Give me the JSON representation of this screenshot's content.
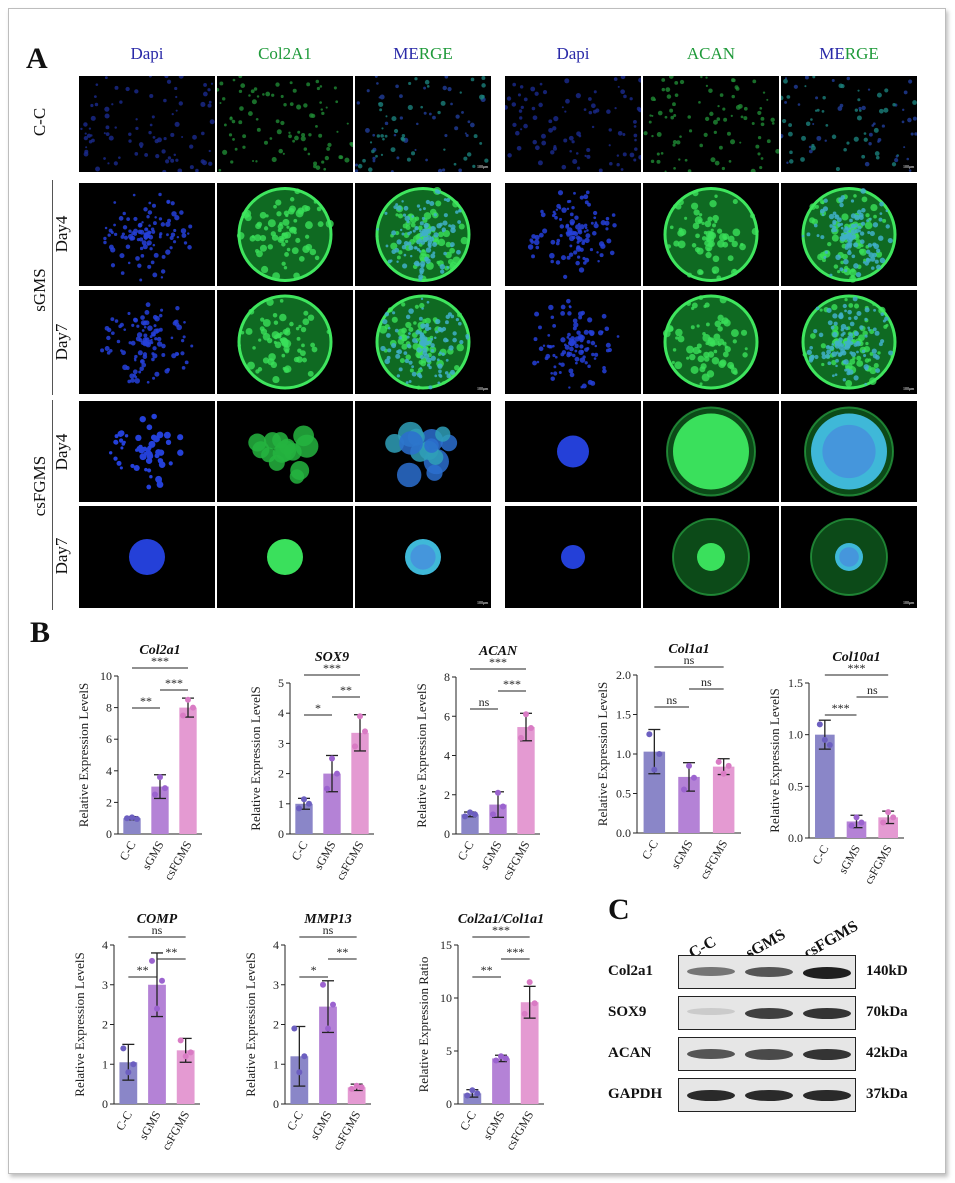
{
  "panels": {
    "a": "A",
    "b": "B",
    "c": "C"
  },
  "microscopy": {
    "col_headers_left": [
      "Dapi",
      "Col2A1",
      "MERGE"
    ],
    "col_headers_right": [
      "Dapi",
      "ACAN",
      "MERGE"
    ],
    "header_colors": {
      "Dapi": "#2a2aa8",
      "Col2A1": "#1f9a3a",
      "ACAN": "#1f9a3a",
      "ME": "#2a2aa8",
      "RGE": "#1f9a3a"
    },
    "group_labels": {
      "cc": "C-C",
      "sgms": "sGMS",
      "csfgms": "csFGMS"
    },
    "day_labels": [
      "Day4",
      "Day7",
      "Day4",
      "Day7"
    ],
    "scale_bar_text": "100μm"
  },
  "chart_data": [
    {
      "type": "bar",
      "title": "Col2a1",
      "ylabel": "Relative Expression LevelS",
      "categories": [
        "C-C",
        "sGMS",
        "csFGMS"
      ],
      "values": [
        1.0,
        3.0,
        8.0
      ],
      "errors": [
        0.1,
        0.75,
        0.6
      ],
      "points": [
        [
          1.0,
          1.05,
          0.95
        ],
        [
          2.5,
          3.6,
          2.9
        ],
        [
          7.5,
          8.5,
          8.0
        ]
      ],
      "ylim": [
        0,
        10
      ],
      "yticks": [
        0,
        2,
        4,
        6,
        8,
        10
      ],
      "ytick_labels": [
        "0",
        "2",
        "4",
        "6",
        "8",
        "10"
      ],
      "brackets": [
        {
          "from": 0,
          "to": 2,
          "label": "***"
        },
        {
          "from": 0,
          "to": 1,
          "label": "**"
        },
        {
          "from": 1,
          "to": 2,
          "label": "***"
        }
      ]
    },
    {
      "type": "bar",
      "title": "SOX9",
      "ylabel": "Relative Expression LevelS",
      "categories": [
        "C-C",
        "sGMS",
        "csFGMS"
      ],
      "values": [
        1.0,
        2.0,
        3.35
      ],
      "errors": [
        0.18,
        0.6,
        0.6
      ],
      "points": [
        [
          0.85,
          1.15,
          1.0
        ],
        [
          1.5,
          2.5,
          2.0
        ],
        [
          2.9,
          3.9,
          3.4
        ]
      ],
      "ylim": [
        0,
        5
      ],
      "yticks": [
        0,
        1,
        2,
        3,
        4,
        5
      ],
      "ytick_labels": [
        "0",
        "1",
        "2",
        "3",
        "4",
        "5"
      ],
      "brackets": [
        {
          "from": 0,
          "to": 2,
          "label": "***"
        },
        {
          "from": 0,
          "to": 1,
          "label": "*"
        },
        {
          "from": 1,
          "to": 2,
          "label": "**"
        }
      ]
    },
    {
      "type": "bar",
      "title": "ACAN",
      "ylabel": "Relative Expression LevelS",
      "categories": [
        "C-C",
        "sGMS",
        "csFGMS"
      ],
      "values": [
        1.0,
        1.5,
        5.45
      ],
      "errors": [
        0.12,
        0.65,
        0.7
      ],
      "points": [
        [
          0.9,
          1.1,
          1.0
        ],
        [
          1.0,
          2.1,
          1.4
        ],
        [
          4.9,
          6.1,
          5.4
        ]
      ],
      "ylim": [
        0,
        8
      ],
      "yticks": [
        0,
        2,
        4,
        6,
        8
      ],
      "ytick_labels": [
        "0",
        "2",
        "4",
        "6",
        "8"
      ],
      "brackets": [
        {
          "from": 0,
          "to": 2,
          "label": "***"
        },
        {
          "from": 0,
          "to": 1,
          "label": "ns"
        },
        {
          "from": 1,
          "to": 2,
          "label": "***"
        }
      ]
    },
    {
      "type": "bar",
      "title": "Col1a1",
      "ylabel": "Relative Expression LevelS",
      "categories": [
        "C-C",
        "sGMS",
        "csFGMS"
      ],
      "values": [
        1.03,
        0.71,
        0.84
      ],
      "errors": [
        0.28,
        0.18,
        0.1
      ],
      "points": [
        [
          1.25,
          0.8,
          1.0
        ],
        [
          0.55,
          0.85,
          0.7
        ],
        [
          0.9,
          0.75,
          0.85
        ]
      ],
      "ylim": [
        0,
        2.0
      ],
      "yticks": [
        0,
        0.5,
        1.0,
        1.5,
        2.0
      ],
      "ytick_labels": [
        "0.0",
        "0.5",
        "1.0",
        "1.5",
        "2.0"
      ],
      "brackets": [
        {
          "from": 0,
          "to": 2,
          "label": "ns"
        },
        {
          "from": 0,
          "to": 1,
          "label": "ns"
        },
        {
          "from": 1,
          "to": 2,
          "label": "ns"
        }
      ]
    },
    {
      "type": "bar",
      "title": "Col10a1",
      "ylabel": "Relative Expression LevelS",
      "categories": [
        "C-C",
        "sGMS",
        "csFGMS"
      ],
      "values": [
        1.0,
        0.16,
        0.2
      ],
      "errors": [
        0.14,
        0.06,
        0.06
      ],
      "points": [
        [
          1.1,
          0.95,
          0.9
        ],
        [
          0.12,
          0.2,
          0.15
        ],
        [
          0.15,
          0.25,
          0.2
        ]
      ],
      "ylim": [
        0,
        1.5
      ],
      "yticks": [
        0,
        0.5,
        1.0,
        1.5
      ],
      "ytick_labels": [
        "0.0",
        "0.5",
        "1.0",
        "1.5"
      ],
      "brackets": [
        {
          "from": 0,
          "to": 2,
          "label": "***"
        },
        {
          "from": 0,
          "to": 1,
          "label": "***"
        },
        {
          "from": 1,
          "to": 2,
          "label": "ns"
        }
      ]
    },
    {
      "type": "bar",
      "title": "COMP",
      "ylabel": "Relative Expression LevelS",
      "categories": [
        "C-C",
        "sGMS",
        "csFGMS"
      ],
      "values": [
        1.05,
        3.0,
        1.35
      ],
      "errors": [
        0.45,
        0.8,
        0.3
      ],
      "points": [
        [
          1.4,
          0.8,
          1.0
        ],
        [
          3.6,
          2.4,
          3.1
        ],
        [
          1.6,
          1.2,
          1.3
        ]
      ],
      "ylim": [
        0,
        4
      ],
      "yticks": [
        0,
        1,
        2,
        3,
        4
      ],
      "ytick_labels": [
        "0",
        "1",
        "2",
        "3",
        "4"
      ],
      "brackets": [
        {
          "from": 0,
          "to": 2,
          "label": "ns"
        },
        {
          "from": 0,
          "to": 1,
          "label": "**"
        },
        {
          "from": 1,
          "to": 2,
          "label": "**"
        }
      ]
    },
    {
      "type": "bar",
      "title": "MMP13",
      "ylabel": "Relative Expression LevelS",
      "categories": [
        "C-C",
        "sGMS",
        "csFGMS"
      ],
      "values": [
        1.2,
        2.45,
        0.42
      ],
      "errors": [
        0.75,
        0.65,
        0.08
      ],
      "points": [
        [
          1.9,
          0.8,
          1.2
        ],
        [
          3.0,
          1.9,
          2.5
        ],
        [
          0.38,
          0.46,
          0.42
        ]
      ],
      "ylim": [
        0,
        4
      ],
      "yticks": [
        0,
        1,
        2,
        3,
        4
      ],
      "ytick_labels": [
        "0",
        "1",
        "2",
        "3",
        "4"
      ],
      "brackets": [
        {
          "from": 0,
          "to": 2,
          "label": "ns"
        },
        {
          "from": 0,
          "to": 1,
          "label": "*"
        },
        {
          "from": 1,
          "to": 2,
          "label": "**"
        }
      ]
    },
    {
      "type": "bar",
      "title": "Col2a1/Col1a1",
      "ylabel": "Relative Expression Ratio",
      "categories": [
        "C-C",
        "sGMS",
        "csFGMS"
      ],
      "values": [
        1.0,
        4.3,
        9.6
      ],
      "errors": [
        0.35,
        0.3,
        1.5
      ],
      "points": [
        [
          0.8,
          1.3,
          1.0
        ],
        [
          4.1,
          4.5,
          4.3
        ],
        [
          8.5,
          11.5,
          9.5
        ]
      ],
      "ylim": [
        0,
        15
      ],
      "yticks": [
        0,
        5,
        10,
        15
      ],
      "ytick_labels": [
        "0",
        "5",
        "10",
        "15"
      ],
      "brackets": [
        {
          "from": 0,
          "to": 2,
          "label": "***"
        },
        {
          "from": 0,
          "to": 1,
          "label": "**"
        },
        {
          "from": 1,
          "to": 2,
          "label": "***"
        }
      ]
    }
  ],
  "chart_colors": {
    "bars": [
      "#8a86c8",
      "#b482d6",
      "#e49ad2"
    ],
    "points": [
      "#6c5fc0",
      "#9b63cf",
      "#d97bc4"
    ]
  },
  "western_blot": {
    "lanes": [
      "C-C",
      "sGMS",
      "csFGMS"
    ],
    "rows": [
      {
        "name": "Col2a1",
        "size": "140kD",
        "intensity": [
          0.55,
          0.7,
          0.95
        ]
      },
      {
        "name": "SOX9",
        "size": "70kDa",
        "intensity": [
          0.15,
          0.8,
          0.85
        ]
      },
      {
        "name": "ACAN",
        "size": "42kDa",
        "intensity": [
          0.7,
          0.75,
          0.85
        ]
      },
      {
        "name": "GAPDH",
        "size": "37kDa",
        "intensity": [
          0.9,
          0.9,
          0.9
        ]
      }
    ]
  }
}
